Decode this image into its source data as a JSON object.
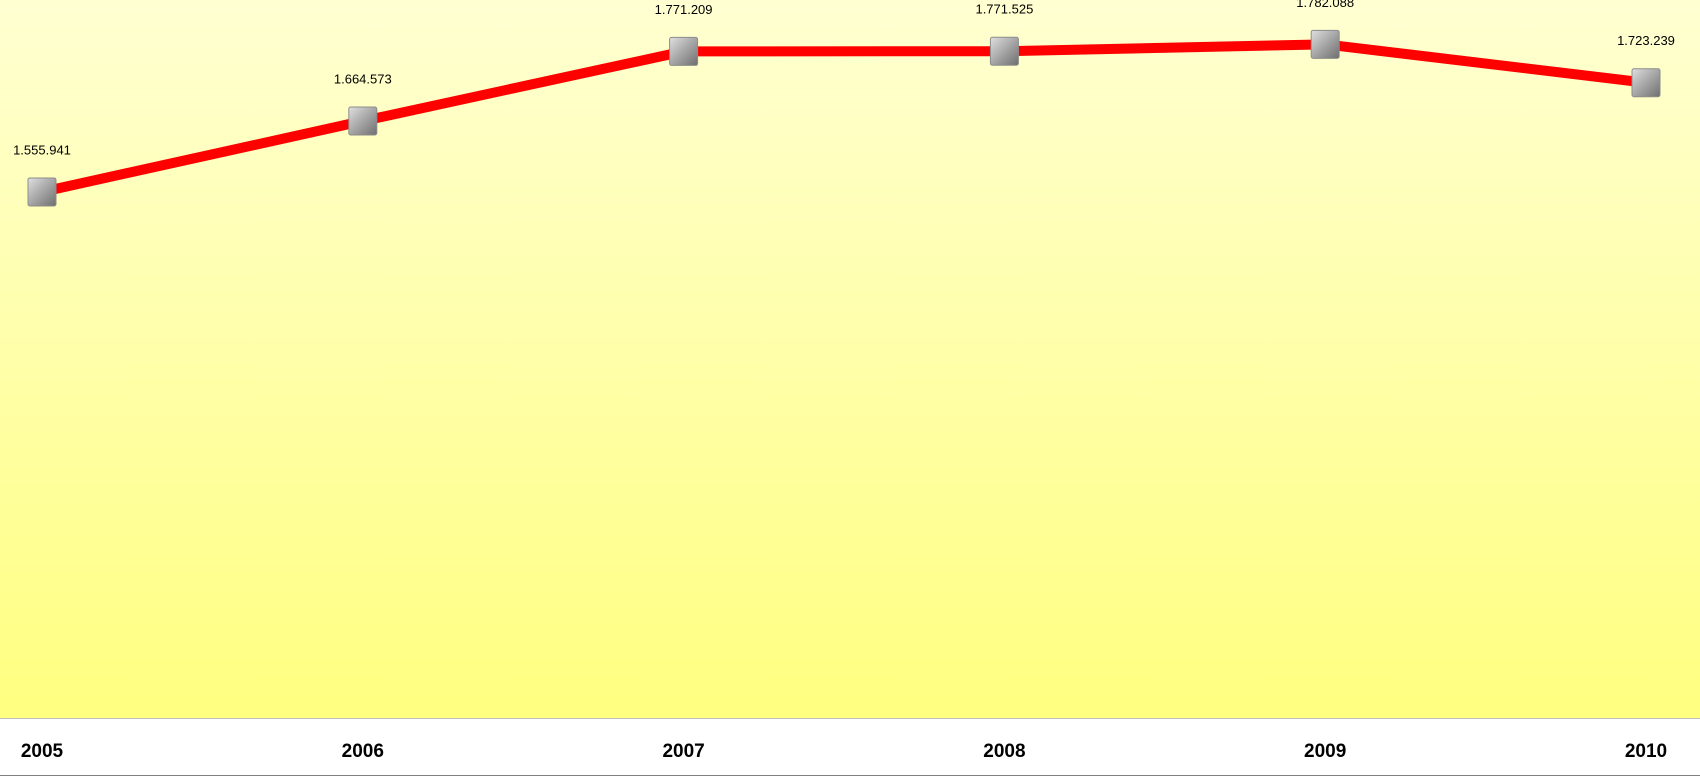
{
  "chart_data": {
    "type": "line",
    "categories": [
      "2005",
      "2006",
      "2007",
      "2008",
      "2009",
      "2010"
    ],
    "series": [
      {
        "color": "#ff0000",
        "values": [
          1555941,
          1664573,
          1771209,
          1771525,
          1782088,
          1723239
        ],
        "value_labels": [
          "1.555.941",
          "1.664.573",
          "1.771.209",
          "1.771.525",
          "1.782.088",
          "1.723.239"
        ]
      }
    ],
    "ylim": [
      750000,
      1850000
    ]
  }
}
